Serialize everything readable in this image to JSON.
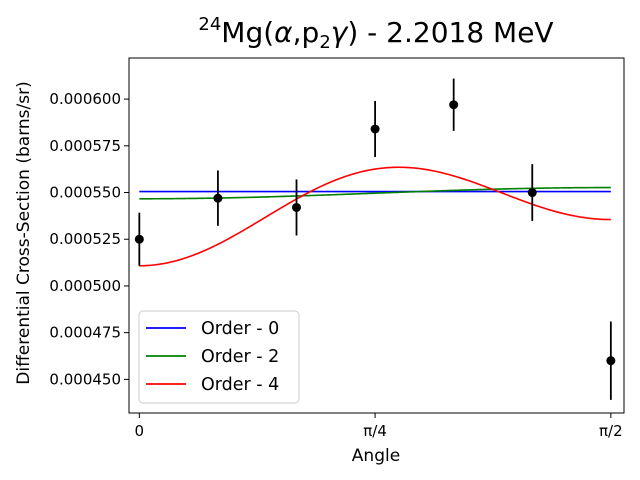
{
  "chart_data": {
    "type": "scatter",
    "title": {
      "sup": "24",
      "main": "Mg(",
      "alpha": "α",
      "p": ",p",
      "sub": "2",
      "gamma": "γ",
      "rest": ") - 2.2018 MeV"
    },
    "xlabel": "Angle",
    "ylabel": "Differential Cross-Section (barns/sr)",
    "xlim": [
      -0.0172,
      0.8073
    ],
    "ylim": [
      0.000432,
      0.000622
    ],
    "x_ticks": [
      {
        "value": 0,
        "label": "0"
      },
      {
        "value": 0.3927,
        "label": "π/4"
      },
      {
        "value": 0.7854,
        "label": "π/2"
      }
    ],
    "y_ticks": [
      {
        "value": 0.00045,
        "label": "0.000450"
      },
      {
        "value": 0.000475,
        "label": "0.000475"
      },
      {
        "value": 0.0005,
        "label": "0.000500"
      },
      {
        "value": 0.000525,
        "label": "0.000525"
      },
      {
        "value": 0.00055,
        "label": "0.000550"
      },
      {
        "value": 0.000575,
        "label": "0.000575"
      },
      {
        "value": 0.0006,
        "label": "0.000600"
      }
    ],
    "points": [
      {
        "x": 0.0,
        "y": 0.000525,
        "err": 1.42e-05
      },
      {
        "x": 0.1309,
        "y": 0.000547,
        "err": 1.48e-05
      },
      {
        "x": 0.2618,
        "y": 0.000542,
        "err": 1.5e-05
      },
      {
        "x": 0.3927,
        "y": 0.000584,
        "err": 1.5e-05
      },
      {
        "x": 0.5236,
        "y": 0.000597,
        "err": 1.4e-05
      },
      {
        "x": 0.6545,
        "y": 0.00055,
        "err": 1.52e-05
      },
      {
        "x": 0.7854,
        "y": 0.00046,
        "err": 2.1e-05
      }
    ],
    "series": [
      {
        "name": "Order - 0",
        "color": "#0000ff",
        "a": [
          0.0005505,
          0,
          0
        ]
      },
      {
        "name": "Order - 2",
        "color": "#008000",
        "a": [
          0.00055065,
          -4e-06,
          0
        ]
      },
      {
        "name": "Order - 4",
        "color": "#ff0000",
        "a": [
          0.0005483,
          -1.5e-06,
          -3.6e-05
        ]
      }
    ],
    "point_color": "#000000",
    "legend_position": "lower-left",
    "grid": false
  }
}
